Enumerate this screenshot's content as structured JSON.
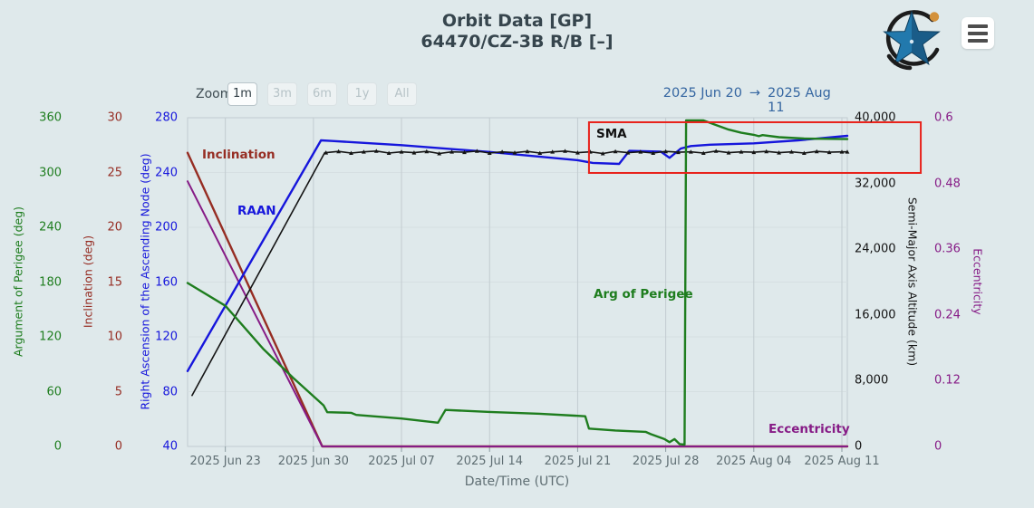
{
  "header": {
    "title_line1": "Orbit Data [GP]",
    "title_line2": "64470/CZ-3B R/B [–]"
  },
  "icons": {
    "logo": "keeptrack-star-logo",
    "menu": "hamburger-menu"
  },
  "toolbar": {
    "zoom_label": "Zoom",
    "zoom_buttons": [
      {
        "label": "1m",
        "active": true
      },
      {
        "label": "3m",
        "active": false
      },
      {
        "label": "6m",
        "active": false
      },
      {
        "label": "1y",
        "active": false
      },
      {
        "label": "All",
        "active": false
      }
    ],
    "range_from": "2025 Jun 20",
    "range_arrow": "→",
    "range_to": "2025 Aug 11"
  },
  "chart_data": {
    "type": "line",
    "title": "Orbit Data [GP]",
    "subtitle": "64470/CZ-3B R/B [–]",
    "x": {
      "label": "Date/Time (UTC)",
      "epoch_label": "2025 Jun 20",
      "min_day": 0,
      "max_day": 52.43,
      "ticks": [
        {
          "d": 3,
          "t": "2025 Jun 23"
        },
        {
          "d": 10,
          "t": "2025 Jun 30"
        },
        {
          "d": 17,
          "t": "2025 Jul 07"
        },
        {
          "d": 24,
          "t": "2025 Jul 14"
        },
        {
          "d": 31,
          "t": "2025 Jul 21"
        },
        {
          "d": 38,
          "t": "2025 Jul 28"
        },
        {
          "d": 45,
          "t": "2025 Aug 04"
        },
        {
          "d": 52,
          "t": "2025 Aug 11"
        }
      ]
    },
    "axes": [
      {
        "id": "argp",
        "title": "Argument of Perigee (deg)",
        "side": "left",
        "col": 0,
        "color": "#1e7d1e",
        "min": 0,
        "max": 360,
        "ticks": [
          {
            "v": 360,
            "t": "360"
          },
          {
            "v": 300,
            "t": "300"
          },
          {
            "v": 240,
            "t": "240"
          },
          {
            "v": 180,
            "t": "180"
          },
          {
            "v": 120,
            "t": "120"
          },
          {
            "v": 60,
            "t": "60"
          },
          {
            "v": 0,
            "t": "0"
          }
        ]
      },
      {
        "id": "incl",
        "title": "Inclination (deg)",
        "side": "left",
        "col": 1,
        "color": "#962d23",
        "min": 0,
        "max": 30,
        "ticks": [
          {
            "v": 30,
            "t": "30"
          },
          {
            "v": 25,
            "t": "25"
          },
          {
            "v": 20,
            "t": "20"
          },
          {
            "v": 15,
            "t": "15"
          },
          {
            "v": 10,
            "t": "10"
          },
          {
            "v": 5,
            "t": "5"
          },
          {
            "v": 0,
            "t": "0"
          }
        ]
      },
      {
        "id": "raan",
        "title": "Right Ascension of the Ascending Node (deg)",
        "side": "left",
        "col": 2,
        "color": "#1616dc",
        "min": 40,
        "max": 280,
        "ticks": [
          {
            "v": 280,
            "t": "280"
          },
          {
            "v": 240,
            "t": "240"
          },
          {
            "v": 200,
            "t": "200"
          },
          {
            "v": 160,
            "t": "160"
          },
          {
            "v": 120,
            "t": "120"
          },
          {
            "v": 80,
            "t": "80"
          },
          {
            "v": 40,
            "t": "40"
          }
        ]
      },
      {
        "id": "sma",
        "title": "Semi-Major Axis Altitude (km)",
        "side": "right",
        "col": 0,
        "color": "#141414",
        "min": 0,
        "max": 40000,
        "ticks": [
          {
            "v": 40000,
            "t": "40,000"
          },
          {
            "v": 32000,
            "t": "32,000"
          },
          {
            "v": 24000,
            "t": "24,000"
          },
          {
            "v": 16000,
            "t": "16,000"
          },
          {
            "v": 8000,
            "t": "8,000"
          },
          {
            "v": 0,
            "t": "0"
          }
        ]
      },
      {
        "id": "ecc",
        "title": "Eccentricity",
        "side": "right",
        "col": 1,
        "color": "#861b86",
        "min": 0,
        "max": 0.6,
        "ticks": [
          {
            "v": 0.6,
            "t": "0.6"
          },
          {
            "v": 0.48,
            "t": "0.48"
          },
          {
            "v": 0.36,
            "t": "0.36"
          },
          {
            "v": 0.24,
            "t": "0.24"
          },
          {
            "v": 0.12,
            "t": "0.12"
          },
          {
            "v": 0,
            "t": "0"
          }
        ]
      }
    ],
    "series": [
      {
        "id": "incl",
        "label": "Inclination",
        "axis": "incl",
        "color": "#962d23",
        "width": 2.4,
        "points": [
          [
            0,
            26.8
          ],
          [
            10.7,
            0
          ],
          [
            52.43,
            0
          ]
        ]
      },
      {
        "id": "ecc",
        "label": "Eccentricity",
        "axis": "ecc",
        "color": "#861b86",
        "width": 2,
        "points": [
          [
            0,
            0.484
          ],
          [
            10.7,
            0
          ],
          [
            52.43,
            0
          ]
        ]
      },
      {
        "id": "raan",
        "label": "RAAN",
        "axis": "raan",
        "color": "#1616dc",
        "width": 2.4,
        "points": [
          [
            0,
            95
          ],
          [
            10.6,
            263.5
          ],
          [
            11.5,
            263
          ],
          [
            17,
            260
          ],
          [
            24,
            255
          ],
          [
            31,
            249
          ],
          [
            32.2,
            247
          ],
          [
            34.3,
            246.3
          ],
          [
            35.1,
            255.8
          ],
          [
            37.6,
            255.3
          ],
          [
            38.3,
            250.7
          ],
          [
            39.2,
            257.5
          ],
          [
            40,
            259.3
          ],
          [
            41.5,
            260.3
          ],
          [
            45,
            261.3
          ],
          [
            48.5,
            263.5
          ],
          [
            52.43,
            266.8
          ]
        ]
      },
      {
        "id": "sma",
        "label": "SMA",
        "axis": "sma",
        "color": "#141414",
        "width": 1.6,
        "markers": true,
        "points": [
          [
            0.35,
            6200
          ],
          [
            10.9,
            35750
          ],
          [
            11,
            35750
          ],
          [
            12,
            35900
          ],
          [
            13,
            35700
          ],
          [
            14,
            35850
          ],
          [
            15,
            35950
          ],
          [
            16,
            35700
          ],
          [
            17,
            35850
          ],
          [
            18,
            35750
          ],
          [
            19,
            35900
          ],
          [
            20,
            35650
          ],
          [
            21,
            35850
          ],
          [
            22,
            35800
          ],
          [
            23,
            35950
          ],
          [
            24,
            35700
          ],
          [
            25,
            35850
          ],
          [
            26,
            35750
          ],
          [
            27,
            35900
          ],
          [
            28,
            35700
          ],
          [
            29,
            35850
          ],
          [
            30,
            35950
          ],
          [
            31,
            35750
          ],
          [
            32,
            35850
          ],
          [
            33,
            35650
          ],
          [
            34,
            35900
          ],
          [
            35,
            35750
          ],
          [
            36,
            35850
          ],
          [
            37,
            35700
          ],
          [
            38,
            35900
          ],
          [
            39,
            35800
          ],
          [
            40,
            35850
          ],
          [
            41,
            35700
          ],
          [
            42,
            35950
          ],
          [
            43,
            35750
          ],
          [
            44,
            35850
          ],
          [
            45,
            35800
          ],
          [
            46,
            35900
          ],
          [
            47,
            35750
          ],
          [
            48,
            35850
          ],
          [
            49,
            35700
          ],
          [
            50,
            35900
          ],
          [
            51,
            35800
          ],
          [
            52,
            35850
          ],
          [
            52.43,
            35850
          ]
        ]
      },
      {
        "id": "argp",
        "label": "Arg of Perigee",
        "axis": "argp",
        "color": "#1e7d1e",
        "width": 2.4,
        "points": [
          [
            0,
            179
          ],
          [
            3,
            154
          ],
          [
            6,
            107
          ],
          [
            8.4,
            75
          ],
          [
            10.8,
            45
          ],
          [
            11.1,
            37.5
          ],
          [
            13,
            36.8
          ],
          [
            13.4,
            34.5
          ],
          [
            17,
            30.5
          ],
          [
            19.9,
            26
          ],
          [
            20.5,
            40
          ],
          [
            24,
            37.8
          ],
          [
            28,
            35.8
          ],
          [
            31,
            33.5
          ],
          [
            31.6,
            33
          ],
          [
            31.9,
            19.5
          ],
          [
            34,
            17.5
          ],
          [
            36.4,
            16
          ],
          [
            36.8,
            13.5
          ],
          [
            37.9,
            8
          ],
          [
            38.3,
            4.7
          ],
          [
            38.7,
            8
          ],
          [
            39.1,
            2.6
          ],
          [
            39.5,
            2
          ],
          [
            39.62,
            357
          ],
          [
            41,
            357
          ],
          [
            42,
            352
          ],
          [
            43,
            347
          ],
          [
            44,
            343.5
          ],
          [
            45,
            341.3
          ],
          [
            45.4,
            339.8
          ],
          [
            45.7,
            341
          ],
          [
            47,
            338.7
          ],
          [
            49,
            337.2
          ],
          [
            52.43,
            336.6
          ]
        ]
      }
    ],
    "annotation": {
      "shape": "rect",
      "color": "#e8221b",
      "day_from": 31.9,
      "day_to": 58.27,
      "sma_value_top": 39450,
      "sma_value_bottom": 33280
    },
    "legend_position": "inline-labels",
    "grid": {
      "vertical": true,
      "horizontal": true
    }
  }
}
